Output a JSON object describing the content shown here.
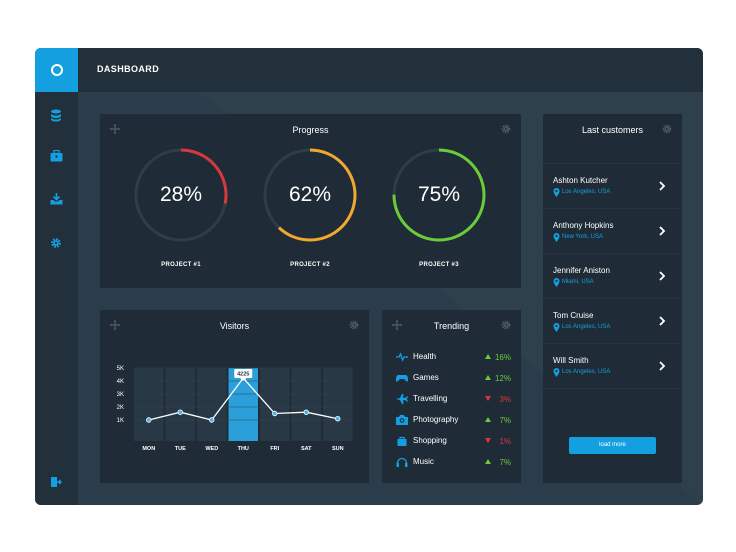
{
  "app": {
    "title": "DASHBOARD"
  },
  "colors": {
    "accent": "#14a0e0",
    "red": "#d8383b",
    "orange": "#f0a830",
    "green": "#6ccc38",
    "panel": "#1f2c37"
  },
  "sidebar": {
    "items": [
      {
        "icon": "database-icon"
      },
      {
        "icon": "briefcase-icon"
      },
      {
        "icon": "download-icon"
      },
      {
        "icon": "gear-icon"
      },
      {
        "icon": "logout-icon"
      }
    ]
  },
  "progress": {
    "title": "Progress",
    "projects": [
      {
        "label": "PROJECT #1",
        "value_text": "28%",
        "value": 0.28,
        "color": "#d8383b"
      },
      {
        "label": "PROJECT #2",
        "value_text": "62%",
        "value": 0.62,
        "color": "#f0a830"
      },
      {
        "label": "PROJECT #3",
        "value_text": "75%",
        "value": 0.75,
        "color": "#6ccc38"
      }
    ]
  },
  "visitors": {
    "title": "Visitors",
    "highlight_label": "4225"
  },
  "chart_data": {
    "type": "line",
    "categories": [
      "MON",
      "TUE",
      "WED",
      "THU",
      "FRI",
      "SAT",
      "SUN"
    ],
    "values": [
      1000,
      1600,
      1000,
      4225,
      1500,
      1600,
      1100
    ],
    "highlight_index": 3,
    "highlight_value": "4225",
    "yticks": [
      "5K",
      "4K",
      "3K",
      "2K",
      "1K"
    ],
    "ylim": [
      0,
      5000
    ],
    "grid": true
  },
  "trending": {
    "title": "Trending",
    "items": [
      {
        "label": "Health",
        "value": "16%",
        "direction": "up",
        "icon": "pulse-icon"
      },
      {
        "label": "Games",
        "value": "12%",
        "direction": "up",
        "icon": "gamepad-icon"
      },
      {
        "label": "Travelling",
        "value": "3%",
        "direction": "down",
        "icon": "airplane-icon"
      },
      {
        "label": "Photography",
        "value": "7%",
        "direction": "up",
        "icon": "camera-icon"
      },
      {
        "label": "Shopping",
        "value": "1%",
        "direction": "down",
        "icon": "shopping-bag-icon"
      },
      {
        "label": "Music",
        "value": "7%",
        "direction": "up",
        "icon": "headphones-icon"
      }
    ]
  },
  "customers": {
    "title": "Last customers",
    "items": [
      {
        "name": "Ashton Kutcher",
        "location": "Los Angeles, USA"
      },
      {
        "name": "Anthony Hopkins",
        "location": "New York, USA"
      },
      {
        "name": "Jennifer Aniston",
        "location": "Miami, USA"
      },
      {
        "name": "Tom Cruise",
        "location": "Los Angeles, USA"
      },
      {
        "name": "Will Smith",
        "location": "Los Angeles, USA"
      }
    ],
    "load_more": "load more"
  }
}
